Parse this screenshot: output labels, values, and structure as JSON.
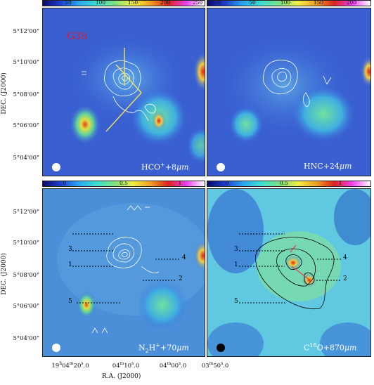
{
  "source_label": "G38",
  "colorbars": {
    "top_left": {
      "ticks": [
        "50",
        "100",
        "150",
        "200",
        "250"
      ]
    },
    "top_right": {
      "ticks": [
        "0",
        "50",
        "100",
        "150",
        "200"
      ]
    },
    "bottom_left": {
      "ticks": [
        "0",
        "0.5",
        "1"
      ]
    },
    "bottom_right": {
      "ticks": [
        "0",
        "0.5",
        "1"
      ]
    }
  },
  "panels": {
    "top_left": {
      "label_main": "HCO",
      "label_sup": "+",
      "label_rest": "+8",
      "label_unit": "μm"
    },
    "top_right": {
      "label_main": "HNC+24",
      "label_unit": "μm"
    },
    "bottom_left": {
      "label_main": "N",
      "label_sub": "2",
      "label_mid": "H",
      "label_sup": "+",
      "label_rest": "+70",
      "label_unit": "μm"
    },
    "bottom_right": {
      "label_main": "C",
      "label_sup": "18",
      "label_rest": "O+870",
      "label_unit": "μm"
    }
  },
  "dec_axis": {
    "title": "DEC. (J2000)",
    "ticks": [
      "5°12'00\"",
      "5°10'00\"",
      "5°08'00\"",
      "5°06'00\"",
      "5°04'00\""
    ]
  },
  "ra_axis": {
    "title": "R.A. (J2000)",
    "ticks": [
      {
        "h": "19",
        "hs": "h",
        "m": "04",
        "ms": "m",
        "s": "20",
        "ss": "s",
        "f": ".0"
      },
      {
        "h": "",
        "hs": "",
        "m": "04",
        "ms": "m",
        "s": "10",
        "ss": "s",
        "f": ".0"
      },
      {
        "h": "",
        "hs": "",
        "m": "04",
        "ms": "m",
        "s": "00",
        "ss": "s",
        "f": ".0"
      },
      {
        "h": "",
        "hs": "",
        "m": "03",
        "ms": "m",
        "s": "50",
        "ss": "s",
        "f": ".0"
      }
    ]
  },
  "cut_labels_left": [
    "3",
    "1",
    "5"
  ],
  "cut_labels_right": [
    "4",
    "2"
  ],
  "colors": {
    "background_blue": "#3a5fd0",
    "colorbar_stops": [
      "#0a0a6a",
      "#1f3fd0",
      "#2aa8f0",
      "#3ce0d0",
      "#7fe080",
      "#f0f040",
      "#f0a020",
      "#e02020",
      "#f040f0",
      "#ffffff"
    ]
  }
}
